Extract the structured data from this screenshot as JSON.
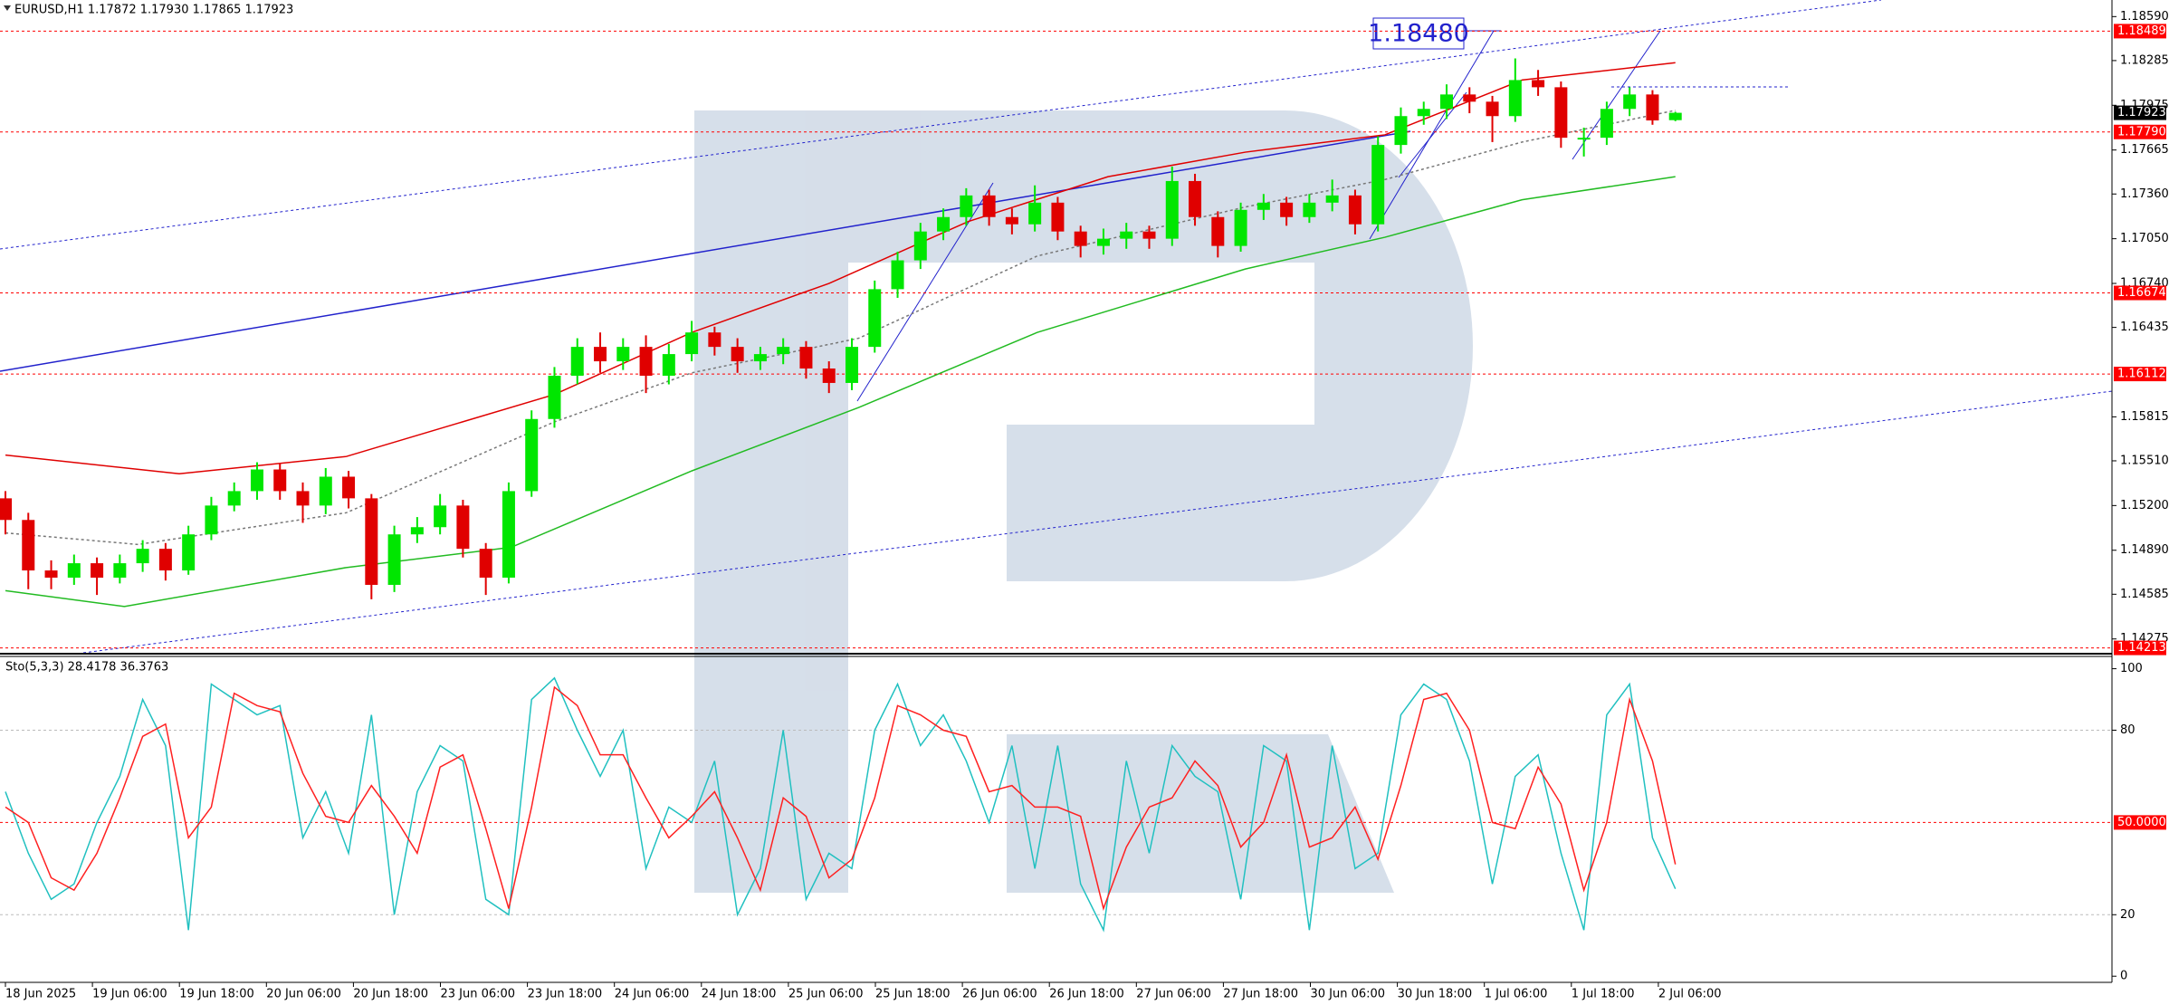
{
  "chart_data": [
    {
      "type": "candlestick",
      "title": "EURUSD,H1  1.17872 1.17930 1.17865 1.17923",
      "annotation": "1.18480",
      "ylim": [
        1.14179,
        1.18705
      ],
      "yticks": [
        {
          "value": 1.1859,
          "label": "1.18590"
        },
        1.18285,
        {
          "value": 1.17975,
          "label": "1.17975"
        },
        1.17665,
        {
          "value": 1.1736,
          "label": "1.17360"
        },
        {
          "value": 1.1705,
          "label": "1.17050"
        },
        {
          "value": 1.1674,
          "label": "1.16740"
        },
        1.16435,
        1.15815,
        {
          "value": 1.1551,
          "label": "1.15510"
        },
        {
          "value": 1.152,
          "label": "1.15200"
        },
        {
          "value": 1.1489,
          "label": "1.14890"
        },
        1.14585,
        1.14275
      ],
      "levels": [
        1.18489,
        {
          "value": 1.1779,
          "label": "1.17790"
        },
        1.16674,
        1.16112,
        1.14213
      ],
      "level_color": "#ff0000",
      "current": 1.17923,
      "bull_color": "#00e600",
      "bear_color": "#e00000",
      "candles": [
        [
          1.1525,
          1.153,
          1.15,
          1.151
        ],
        [
          1.151,
          1.1515,
          1.1462,
          1.1475
        ],
        [
          1.1475,
          1.1482,
          1.1462,
          1.147
        ],
        [
          1.147,
          1.1486,
          1.1465,
          1.148
        ],
        [
          1.148,
          1.1484,
          1.1458,
          1.147
        ],
        [
          1.147,
          1.1486,
          1.1466,
          1.148
        ],
        [
          1.148,
          1.1496,
          1.1474,
          1.149
        ],
        [
          1.149,
          1.1494,
          1.1468,
          1.1475
        ],
        [
          1.1475,
          1.1506,
          1.1472,
          1.15
        ],
        [
          1.15,
          1.1526,
          1.1496,
          1.152
        ],
        [
          1.152,
          1.1536,
          1.1516,
          1.153
        ],
        [
          1.153,
          1.155,
          1.1524,
          1.1545
        ],
        [
          1.1545,
          1.1549,
          1.1524,
          1.153
        ],
        [
          1.153,
          1.1536,
          1.1508,
          1.152
        ],
        [
          1.152,
          1.1546,
          1.1514,
          1.154
        ],
        [
          1.154,
          1.1544,
          1.1518,
          1.1525
        ],
        [
          1.1525,
          1.1528,
          1.1455,
          1.1465
        ],
        [
          1.1465,
          1.1506,
          1.146,
          1.15
        ],
        [
          1.15,
          1.1512,
          1.1494,
          1.1505
        ],
        [
          1.1505,
          1.1528,
          1.15,
          1.152
        ],
        [
          1.152,
          1.1524,
          1.1484,
          1.149
        ],
        [
          1.149,
          1.1494,
          1.1458,
          1.147
        ],
        [
          1.147,
          1.1536,
          1.1466,
          1.153
        ],
        [
          1.153,
          1.1586,
          1.1526,
          1.158
        ],
        [
          1.158,
          1.1616,
          1.1574,
          1.161
        ],
        [
          1.161,
          1.1636,
          1.1604,
          1.163
        ],
        [
          1.163,
          1.164,
          1.1612,
          1.162
        ],
        [
          1.162,
          1.1636,
          1.1614,
          1.163
        ],
        [
          1.163,
          1.1638,
          1.1598,
          1.161
        ],
        [
          1.161,
          1.1632,
          1.1604,
          1.1625
        ],
        [
          1.1625,
          1.1648,
          1.162,
          1.164
        ],
        [
          1.164,
          1.1644,
          1.1624,
          1.163
        ],
        [
          1.163,
          1.1636,
          1.1612,
          1.162
        ],
        [
          1.162,
          1.163,
          1.1614,
          1.1625
        ],
        [
          1.1625,
          1.1636,
          1.1618,
          1.163
        ],
        [
          1.163,
          1.1634,
          1.1608,
          1.1615
        ],
        [
          1.1615,
          1.162,
          1.1598,
          1.1605
        ],
        [
          1.1605,
          1.1636,
          1.16,
          1.163
        ],
        [
          1.163,
          1.1676,
          1.1626,
          1.167
        ],
        [
          1.167,
          1.1696,
          1.1664,
          1.169
        ],
        [
          1.169,
          1.1716,
          1.1684,
          1.171
        ],
        [
          1.171,
          1.1726,
          1.1704,
          1.172
        ],
        [
          1.172,
          1.174,
          1.1714,
          1.1735
        ],
        [
          1.1735,
          1.1739,
          1.1714,
          1.172
        ],
        [
          1.172,
          1.1726,
          1.1708,
          1.1715
        ],
        [
          1.1715,
          1.1742,
          1.171,
          1.173
        ],
        [
          1.173,
          1.1734,
          1.1704,
          1.171
        ],
        [
          1.171,
          1.1714,
          1.1692,
          1.17
        ],
        [
          1.17,
          1.1712,
          1.1694,
          1.1705
        ],
        [
          1.1705,
          1.1716,
          1.1698,
          1.171
        ],
        [
          1.171,
          1.1714,
          1.1698,
          1.1705
        ],
        [
          1.1705,
          1.1755,
          1.17,
          1.1745
        ],
        [
          1.1745,
          1.175,
          1.1714,
          1.172
        ],
        [
          1.172,
          1.1724,
          1.1692,
          1.17
        ],
        [
          1.17,
          1.173,
          1.1696,
          1.1725
        ],
        [
          1.1725,
          1.1736,
          1.1718,
          1.173
        ],
        [
          1.173,
          1.1734,
          1.1714,
          1.172
        ],
        [
          1.172,
          1.1736,
          1.1716,
          1.173
        ],
        [
          1.173,
          1.1746,
          1.1724,
          1.1735
        ],
        [
          1.1735,
          1.1739,
          1.1708,
          1.1715
        ],
        [
          1.1715,
          1.1776,
          1.171,
          1.177
        ],
        [
          1.177,
          1.1796,
          1.1764,
          1.179
        ],
        [
          1.179,
          1.18,
          1.1784,
          1.1795
        ],
        [
          1.1795,
          1.1812,
          1.1788,
          1.1805
        ],
        [
          1.1805,
          1.181,
          1.1792,
          1.18
        ],
        [
          1.18,
          1.1804,
          1.1772,
          1.179
        ],
        [
          1.179,
          1.183,
          1.1786,
          1.1815
        ],
        [
          1.1815,
          1.1822,
          1.1804,
          1.181
        ],
        [
          1.181,
          1.1814,
          1.1768,
          1.1775
        ],
        [
          1.1775,
          1.1782,
          1.1762,
          1.1775
        ],
        [
          1.1775,
          1.18,
          1.177,
          1.1795
        ],
        [
          1.1795,
          1.181,
          1.179,
          1.1805
        ],
        [
          1.1805,
          1.1808,
          1.1784,
          1.1787
        ],
        [
          1.17872,
          1.1793,
          1.17865,
          1.17923
        ]
      ],
      "lines": [
        {
          "color": "#e00000",
          "style": "solid",
          "x": [
            0,
            7.6,
            14.9,
            24,
            30,
            36,
            42.1,
            48.2,
            54.2,
            60.3,
            66.3,
            73
          ],
          "values": [
            1.1555,
            1.1542,
            1.1554,
            1.1597,
            1.164,
            1.1674,
            1.1717,
            1.1748,
            1.1765,
            1.1777,
            1.1815,
            1.1827
          ]
        },
        {
          "color": "#22bb22",
          "style": "solid",
          "x": [
            0,
            5.2,
            14.9,
            22.1,
            30,
            37.3,
            45.1,
            54.2,
            60.3,
            66.3,
            73
          ],
          "values": [
            1.1461,
            1.145,
            1.1477,
            1.1491,
            1.1544,
            1.1588,
            1.164,
            1.1684,
            1.1706,
            1.1732,
            1.1748
          ]
        },
        {
          "color": "#777777",
          "style": "dotted",
          "x": [
            0,
            5.8,
            14.9,
            24,
            30,
            37.3,
            45.1,
            54.2,
            60.3,
            66.3,
            73
          ],
          "values": [
            1.1501,
            1.1493,
            1.1515,
            1.1578,
            1.1612,
            1.1636,
            1.1693,
            1.1727,
            1.1746,
            1.1772,
            1.1794
          ]
        }
      ],
      "time_labels": [
        "18 Jun 2025",
        "19 Jun 06:00",
        "19 Jun 18:00",
        "20 Jun 06:00",
        "20 Jun 18:00",
        "23 Jun 06:00",
        "23 Jun 18:00",
        "24 Jun 06:00",
        "24 Jun 18:00",
        "25 Jun 06:00",
        "25 Jun 18:00",
        "26 Jun 06:00",
        "26 Jun 18:00",
        "27 Jun 06:00",
        "27 Jun 18:00",
        "30 Jun 06:00",
        "30 Jun 18:00",
        "1 Jul 06:00",
        "1 Jul 18:00",
        "2 Jul 06:00"
      ]
    },
    {
      "type": "line",
      "title": "Sto(5,3,3) 28.4178 36.3763",
      "ylim": [
        -2,
        104
      ],
      "yticks": [
        100,
        80,
        20,
        0
      ],
      "levels": [
        80,
        20
      ],
      "signal_level": {
        "value": 50,
        "label": "50.0000"
      },
      "series": [
        {
          "color": "#20c0c0",
          "values": [
            60,
            40,
            25,
            30,
            50,
            65,
            90,
            75,
            15,
            95,
            90,
            85,
            88,
            45,
            60,
            40,
            85,
            20,
            60,
            75,
            70,
            25,
            20,
            90,
            97,
            80,
            65,
            80,
            35,
            55,
            50,
            70,
            20,
            35,
            80,
            25,
            40,
            35,
            80,
            95,
            75,
            85,
            70,
            50,
            75,
            35,
            75,
            30,
            15,
            70,
            40,
            75,
            65,
            60,
            25,
            75,
            70,
            15,
            75,
            35,
            40,
            85,
            95,
            90,
            70,
            30,
            65,
            72,
            40,
            15,
            85,
            95,
            45,
            28.4178
          ]
        },
        {
          "color": "#ff2020",
          "values": [
            55,
            50,
            32,
            28,
            40,
            58,
            78,
            82,
            45,
            55,
            92,
            88,
            86,
            66,
            52,
            50,
            62,
            52,
            40,
            68,
            72,
            48,
            22,
            55,
            94,
            88,
            72,
            72,
            58,
            45,
            52,
            60,
            45,
            28,
            58,
            52,
            32,
            38,
            58,
            88,
            85,
            80,
            78,
            60,
            62,
            55,
            55,
            52,
            22,
            42,
            55,
            58,
            70,
            62,
            42,
            50,
            72,
            42,
            45,
            55,
            38,
            62,
            90,
            92,
            80,
            50,
            48,
            68,
            56,
            28,
            50,
            90,
            70,
            36.3763
          ]
        }
      ]
    }
  ]
}
